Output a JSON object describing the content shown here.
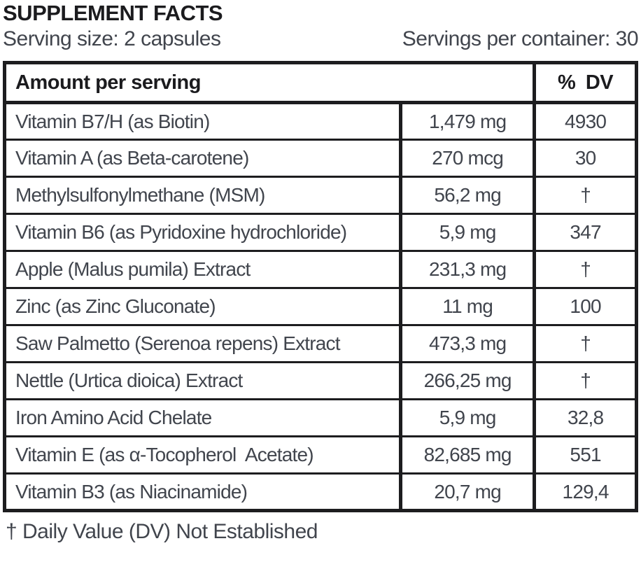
{
  "label": {
    "title": "SUPPLEMENT FACTS",
    "serving_size": "Serving size: 2 capsules",
    "servings_per_container": "Servings per container: 30",
    "footnote": "† Daily Value (DV) Not Established"
  },
  "table": {
    "header": {
      "amount_col": "Amount per serving",
      "dv_col": "% DV"
    },
    "rows": [
      {
        "ingredient": "Vitamin B7/H (as Biotin)",
        "amount": "1,479 mg",
        "dv": "4930"
      },
      {
        "ingredient": "Vitamin A (as Beta-carotene)",
        "amount": "270 mcg",
        "dv": "30"
      },
      {
        "ingredient": "Methylsulfonylmethane (MSM)",
        "amount": "56,2 mg",
        "dv": "†"
      },
      {
        "ingredient": "Vitamin B6 (as Pyridoxine hydrochloride)",
        "amount": "5,9 mg",
        "dv": "347"
      },
      {
        "ingredient": "Apple (Malus pumila) Extract",
        "amount": "231,3 mg",
        "dv": "†"
      },
      {
        "ingredient": "Zinc (as Zinc Gluconate)",
        "amount": "11 mg",
        "dv": "100"
      },
      {
        "ingredient": "Saw Palmetto (Serenoa repens) Extract",
        "amount": "473,3 mg",
        "dv": "†"
      },
      {
        "ingredient": "Nettle (Urtica dioica) Extract",
        "amount": "266,25 mg",
        "dv": "†"
      },
      {
        "ingredient": "Iron Amino Acid Chelate",
        "amount": "5,9 mg",
        "dv": "32,8"
      },
      {
        "ingredient": "Vitamin E (as α-Tocopherol  Acetate)",
        "amount": "82,685 mg",
        "dv": "551"
      },
      {
        "ingredient": "Vitamin B3 (as Niacinamide)",
        "amount": "20,7 mg",
        "dv": "129,4"
      }
    ]
  },
  "colors": {
    "line": "#1d1d1f",
    "heading_text": "#1b1b1e",
    "body_text": "#41454d",
    "background": "#ffffff"
  }
}
